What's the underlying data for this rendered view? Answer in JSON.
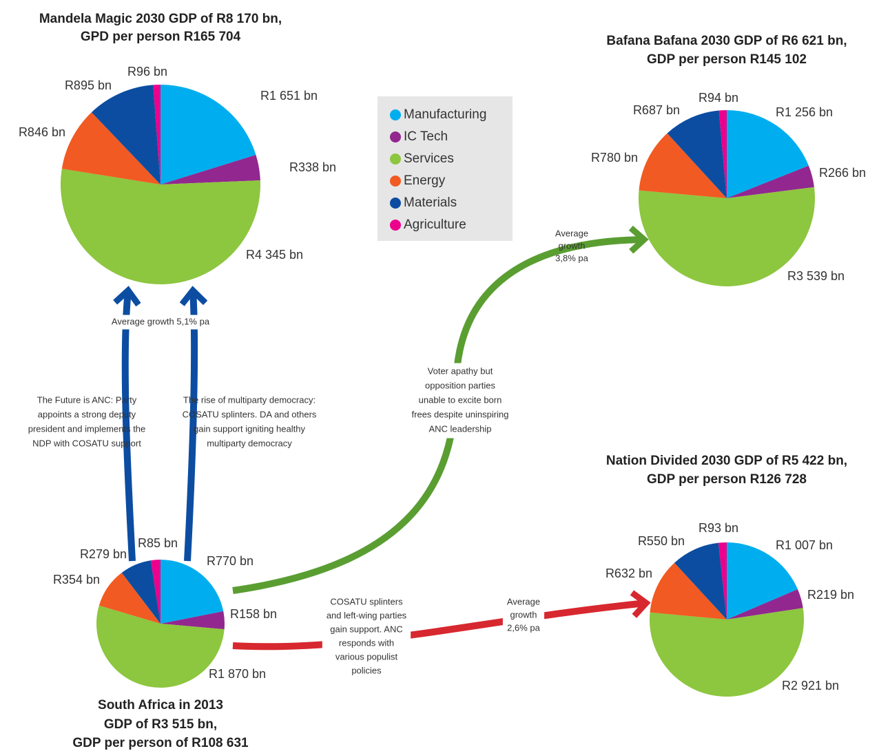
{
  "legend": {
    "categories": [
      "Manufacturing",
      "IC Tech",
      "Services",
      "Energy",
      "Materials",
      "Agriculture"
    ],
    "colors": [
      "#00aeef",
      "#92278f",
      "#8dc63f",
      "#f15a22",
      "#0c4da2",
      "#ec008c"
    ]
  },
  "chart_data": [
    {
      "type": "pie",
      "title": [
        "Mandela Magic 2030 GDP of R8 170 bn,",
        "GPD per person R165 704"
      ],
      "values": [
        1651,
        338,
        4345,
        846,
        895,
        96
      ],
      "value_labels": [
        "R1 651 bn",
        "R338 bn",
        "R4 345 bn",
        "R846 bn",
        "R895 bn",
        "R96 bn"
      ]
    },
    {
      "type": "pie",
      "title": [
        "Bafana Bafana 2030 GDP of R6 621 bn,",
        "GDP per person R145 102"
      ],
      "values": [
        1256,
        266,
        3539,
        780,
        687,
        94
      ],
      "value_labels": [
        "R1 256 bn",
        "R266 bn",
        "R3 539 bn",
        "R780 bn",
        "R687 bn",
        "R94 bn"
      ]
    },
    {
      "type": "pie",
      "title": [
        "Nation Divided 2030 GDP of R5 422 bn,",
        "GDP per person R126 728"
      ],
      "values": [
        1007,
        219,
        2921,
        632,
        550,
        93
      ],
      "value_labels": [
        "R1 007 bn",
        "R219 bn",
        "R2 921 bn",
        "R632 bn",
        "R550 bn",
        "R93 bn"
      ]
    },
    {
      "type": "pie",
      "title": [
        "South Africa in 2013",
        "GDP of R3 515 bn,",
        "GDP per person of R108 631"
      ],
      "values": [
        770,
        158,
        1870,
        354,
        279,
        85
      ],
      "value_labels": [
        "R770 bn",
        "R158 bn",
        "R1 870 bn",
        "R354 bn",
        "R279 bn",
        "R85 bn"
      ]
    }
  ],
  "annotations": [
    {
      "lines": [
        "Average growth 5,1% pa"
      ]
    },
    {
      "lines": [
        "The Future is ANC: Party",
        "appoints a strong deputy",
        "president and implements the",
        "NDP with COSATU support"
      ]
    },
    {
      "lines": [
        "The rise of multiparty democracy:",
        "COSATU splinters. DA and others",
        "gain support igniting healthy",
        "multiparty democracy"
      ]
    },
    {
      "lines": [
        "Voter apathy but",
        "opposition parties",
        "unable to excite born",
        "frees despite uninspiring",
        "ANC leadership"
      ]
    },
    {
      "lines": [
        "Average",
        "growth",
        "3,8% pa"
      ]
    },
    {
      "lines": [
        "COSATU splinters",
        "and left-wing parties",
        "gain support. ANC",
        "responds with",
        "various populist",
        "policies"
      ]
    },
    {
      "lines": [
        "Average",
        "growth",
        "2,6% pa"
      ]
    }
  ]
}
